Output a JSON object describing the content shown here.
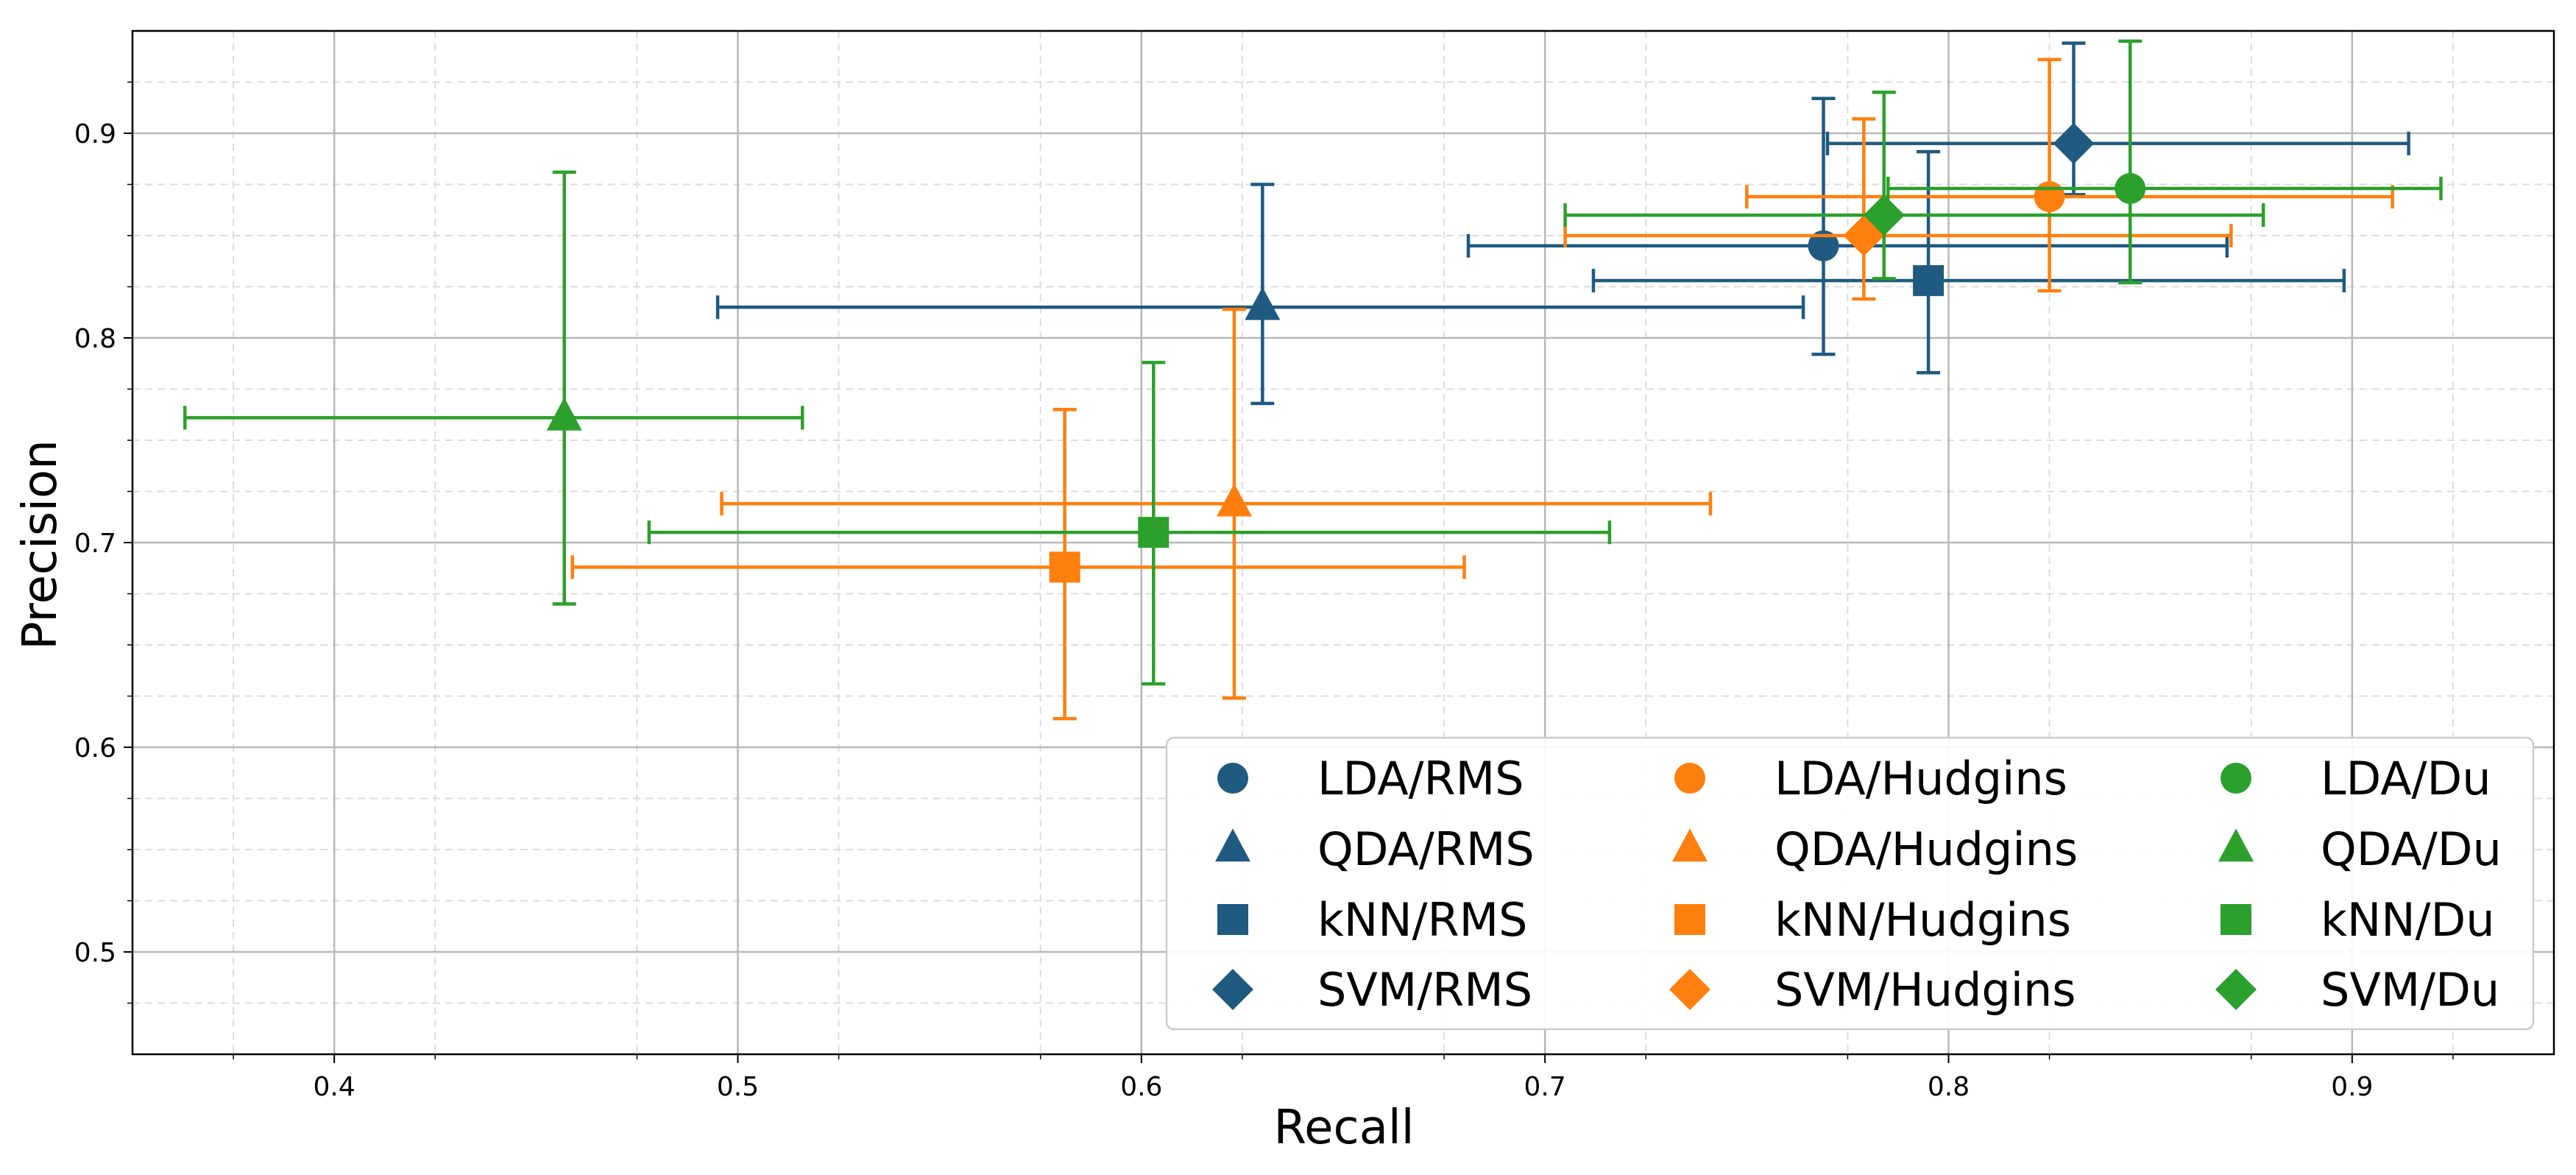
{
  "chart_data": {
    "type": "scatter",
    "title": "",
    "xlabel": "Recall",
    "ylabel": "Precision",
    "xlim": [
      0.35,
      0.95
    ],
    "ylim": [
      0.45,
      0.95
    ],
    "xticks": [
      0.4,
      0.5,
      0.6,
      0.7,
      0.8,
      0.9
    ],
    "yticks": [
      0.5,
      0.6,
      0.7,
      0.8,
      0.9
    ],
    "xtick_labels": [
      "0.4",
      "0.5",
      "0.6",
      "0.7",
      "0.8",
      "0.9"
    ],
    "ytick_labels": [
      "0.5",
      "0.6",
      "0.7",
      "0.8",
      "0.9"
    ],
    "grid": true,
    "minor_grid": true,
    "legend_position": "lower-right",
    "colors": {
      "RMS": "#1f5a80",
      "Hudgins": "#ff7f0e",
      "Du": "#2ca02c"
    },
    "series": [
      {
        "name": "LDA/RMS",
        "feature": "RMS",
        "marker": "circle",
        "x": 0.769,
        "y": 0.845,
        "x_err": [
          0.681,
          0.869
        ],
        "y_err": [
          0.792,
          0.917
        ]
      },
      {
        "name": "QDA/RMS",
        "feature": "RMS",
        "marker": "triangle",
        "x": 0.63,
        "y": 0.815,
        "x_err": [
          0.495,
          0.764
        ],
        "y_err": [
          0.768,
          0.875
        ]
      },
      {
        "name": "kNN/RMS",
        "feature": "RMS",
        "marker": "square",
        "x": 0.795,
        "y": 0.828,
        "x_err": [
          0.712,
          0.898
        ],
        "y_err": [
          0.783,
          0.891
        ]
      },
      {
        "name": "SVM/RMS",
        "feature": "RMS",
        "marker": "diamond",
        "x": 0.831,
        "y": 0.895,
        "x_err": [
          0.77,
          0.914
        ],
        "y_err": [
          0.87,
          0.944
        ]
      },
      {
        "name": "LDA/Hudgins",
        "feature": "Hudgins",
        "marker": "circle",
        "x": 0.825,
        "y": 0.869,
        "x_err": [
          0.75,
          0.91
        ],
        "y_err": [
          0.823,
          0.936
        ]
      },
      {
        "name": "QDA/Hudgins",
        "feature": "Hudgins",
        "marker": "triangle",
        "x": 0.623,
        "y": 0.719,
        "x_err": [
          0.496,
          0.741
        ],
        "y_err": [
          0.624,
          0.814
        ]
      },
      {
        "name": "kNN/Hudgins",
        "feature": "Hudgins",
        "marker": "square",
        "x": 0.581,
        "y": 0.688,
        "x_err": [
          0.459,
          0.68
        ],
        "y_err": [
          0.614,
          0.765
        ]
      },
      {
        "name": "SVM/Hudgins",
        "feature": "Hudgins",
        "marker": "diamond",
        "x": 0.779,
        "y": 0.85,
        "x_err": [
          0.705,
          0.87
        ],
        "y_err": [
          0.819,
          0.907
        ]
      },
      {
        "name": "LDA/Du",
        "feature": "Du",
        "marker": "circle",
        "x": 0.845,
        "y": 0.873,
        "x_err": [
          0.785,
          0.922
        ],
        "y_err": [
          0.827,
          0.945
        ]
      },
      {
        "name": "QDA/Du",
        "feature": "Du",
        "marker": "triangle",
        "x": 0.457,
        "y": 0.761,
        "x_err": [
          0.363,
          0.516
        ],
        "y_err": [
          0.67,
          0.881
        ]
      },
      {
        "name": "kNN/Du",
        "feature": "Du",
        "marker": "square",
        "x": 0.603,
        "y": 0.705,
        "x_err": [
          0.478,
          0.716
        ],
        "y_err": [
          0.631,
          0.788
        ]
      },
      {
        "name": "SVM/Du",
        "feature": "Du",
        "marker": "diamond",
        "x": 0.784,
        "y": 0.86,
        "x_err": [
          0.705,
          0.878
        ],
        "y_err": [
          0.829,
          0.92
        ]
      }
    ]
  }
}
